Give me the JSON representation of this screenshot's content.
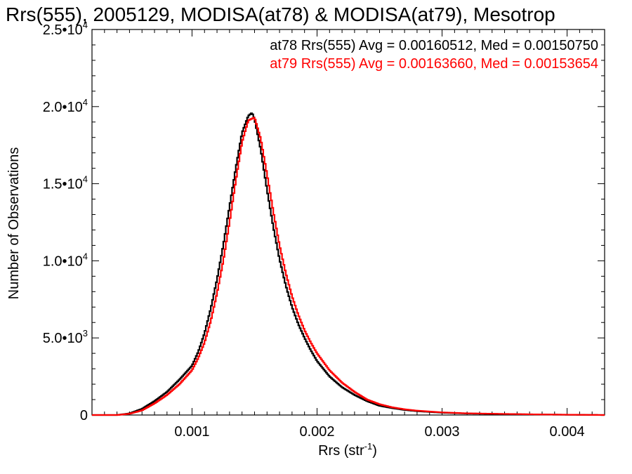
{
  "chart_data": {
    "type": "line",
    "title": "Rrs(555), 2005129, MODISA(at78) & MODISA(at79), Mesotrop",
    "xlabel": "Rrs (str",
    "xlabel_sup": "-1",
    "xlabel_close": ")",
    "ylabel": "Number of Observations",
    "xlim": [
      0.0002,
      0.0043
    ],
    "ylim": [
      0,
      25000
    ],
    "x_ticks": [
      {
        "value": 0.001,
        "label": "0.001"
      },
      {
        "value": 0.002,
        "label": "0.002"
      },
      {
        "value": 0.003,
        "label": "0.003"
      },
      {
        "value": 0.004,
        "label": "0.004"
      }
    ],
    "y_ticks": [
      {
        "value": 0,
        "mant": "0",
        "exp": ""
      },
      {
        "value": 5000,
        "mant": "5.0•10",
        "exp": "3"
      },
      {
        "value": 10000,
        "mant": "1.0•10",
        "exp": "4"
      },
      {
        "value": 15000,
        "mant": "1.5•10",
        "exp": "4"
      },
      {
        "value": 20000,
        "mant": "2.0•10",
        "exp": "4"
      },
      {
        "value": 25000,
        "mant": "2.5•10",
        "exp": "4"
      }
    ],
    "legend_position": "top-right",
    "series": [
      {
        "name": "at78 Rrs(555) Avg = 0.00160512, Med = 0.00150750",
        "color": "#000000",
        "peak": 0.00148,
        "x": [
          0.0002,
          0.0004,
          0.0005,
          0.0006,
          0.0007,
          0.0008,
          0.0009,
          0.001,
          0.00105,
          0.0011,
          0.00115,
          0.0012,
          0.00125,
          0.0013,
          0.00135,
          0.0014,
          0.00145,
          0.00148,
          0.0015,
          0.00155,
          0.0016,
          0.00165,
          0.0017,
          0.00175,
          0.0018,
          0.00185,
          0.0019,
          0.00195,
          0.002,
          0.0021,
          0.0022,
          0.0023,
          0.0024,
          0.0025,
          0.0026,
          0.0027,
          0.0028,
          0.003,
          0.0032,
          0.0035,
          0.0038,
          0.0043
        ],
        "values": [
          0,
          0,
          100,
          400,
          900,
          1500,
          2300,
          3200,
          4100,
          5300,
          6900,
          8800,
          11000,
          13500,
          16000,
          18300,
          19400,
          19600,
          19200,
          17200,
          14600,
          12200,
          10100,
          8400,
          7000,
          5900,
          5000,
          4200,
          3500,
          2500,
          1800,
          1300,
          900,
          600,
          450,
          330,
          250,
          150,
          100,
          60,
          30,
          0
        ]
      },
      {
        "name": "at79 Rrs(555) Avg = 0.00163660, Med = 0.00153654",
        "color": "#ff0000",
        "peak": 0.0015,
        "x": [
          0.0002,
          0.0004,
          0.0005,
          0.0006,
          0.0007,
          0.0008,
          0.0009,
          0.001,
          0.00105,
          0.0011,
          0.00115,
          0.0012,
          0.00125,
          0.0013,
          0.00135,
          0.0014,
          0.00145,
          0.0015,
          0.00155,
          0.0016,
          0.00165,
          0.0017,
          0.00175,
          0.0018,
          0.00185,
          0.0019,
          0.00195,
          0.002,
          0.0021,
          0.0022,
          0.0023,
          0.0024,
          0.0025,
          0.0026,
          0.0027,
          0.0028,
          0.003,
          0.0032,
          0.0035,
          0.0038,
          0.0043
        ],
        "values": [
          0,
          0,
          80,
          300,
          750,
          1300,
          2000,
          2900,
          3700,
          4700,
          6100,
          7900,
          10000,
          12500,
          15200,
          17700,
          19100,
          19300,
          17900,
          15600,
          13200,
          11000,
          9200,
          7700,
          6500,
          5500,
          4700,
          4000,
          2900,
          2100,
          1500,
          1000,
          700,
          500,
          370,
          280,
          170,
          110,
          70,
          35,
          0
        ]
      }
    ]
  }
}
